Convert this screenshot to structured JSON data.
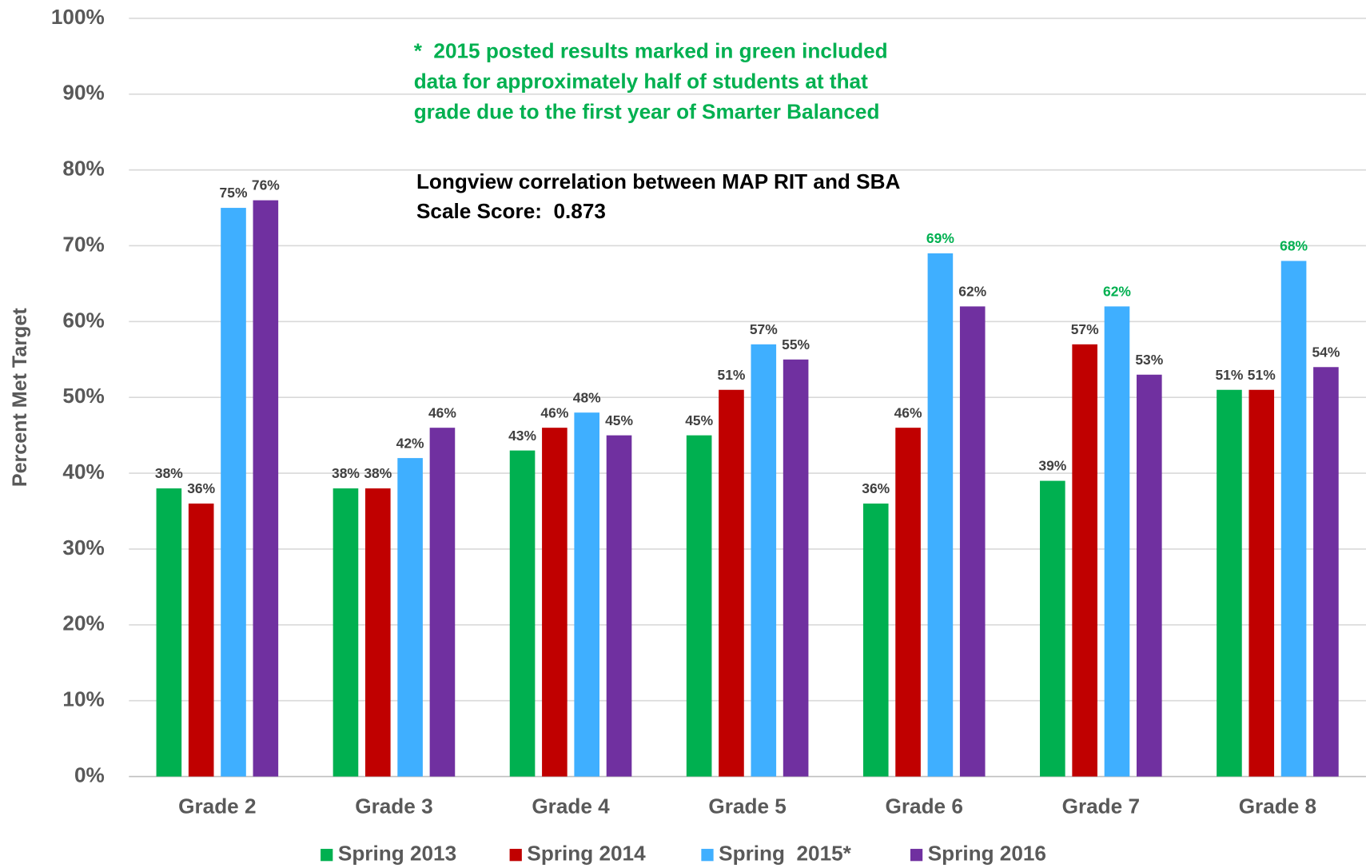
{
  "chart_data": {
    "type": "bar",
    "y_label": "Percent Met Target",
    "categories": [
      "Grade 2",
      "Grade 3",
      "Grade 4",
      "Grade 5",
      "Grade 6",
      "Grade 7",
      "Grade 8"
    ],
    "series": [
      {
        "name": "Spring 2013",
        "color": "#00b050",
        "values": [
          38,
          38,
          43,
          45,
          36,
          39,
          51
        ],
        "value_labels": [
          "38%",
          "38%",
          "43%",
          "45%",
          "36%",
          "39%",
          "51%"
        ]
      },
      {
        "name": "Spring 2014",
        "color": "#c00000",
        "values": [
          36,
          38,
          46,
          51,
          46,
          57,
          51
        ],
        "value_labels": [
          "36%",
          "38%",
          "46%",
          "51%",
          "46%",
          "57%",
          "51%"
        ]
      },
      {
        "name": "Spring  2015*",
        "color": "#3fafff",
        "values": [
          75,
          42,
          48,
          57,
          69,
          62,
          68
        ],
        "value_labels": [
          "75%",
          "42%",
          "48%",
          "57%",
          "69%",
          "62%",
          "68%"
        ],
        "value_label_colors": [
          "#404040",
          "#404040",
          "#404040",
          "#404040",
          "#00b050",
          "#00b050",
          "#00b050"
        ]
      },
      {
        "name": "Spring 2016",
        "color": "#7030a0",
        "values": [
          76,
          46,
          45,
          55,
          62,
          53,
          54
        ],
        "value_labels": [
          "76%",
          "46%",
          "45%",
          "55%",
          "62%",
          "53%",
          "54%"
        ]
      }
    ],
    "ylim": [
      0,
      100
    ],
    "yticks": [
      {
        "value": 0,
        "label": "0%"
      },
      {
        "value": 10,
        "label": "10%"
      },
      {
        "value": 20,
        "label": "20%"
      },
      {
        "value": 30,
        "label": "30%"
      },
      {
        "value": 40,
        "label": "40%"
      },
      {
        "value": 50,
        "label": "50%"
      },
      {
        "value": 60,
        "label": "60%"
      },
      {
        "value": 70,
        "label": "70%"
      },
      {
        "value": 80,
        "label": "80%"
      },
      {
        "value": 90,
        "label": "90%"
      },
      {
        "value": 100,
        "label": "100%"
      }
    ],
    "grid": true,
    "legend": "bottom",
    "annotations": [
      {
        "color": "#00b050",
        "lines": [
          "*  2015 posted results marked in green included",
          "data for approximately half of students at that",
          "grade due to the first year of Smarter Balanced"
        ]
      },
      {
        "color": "#000000",
        "lines": [
          "Longview correlation between MAP RIT and SBA",
          "Scale Score:  0.873"
        ]
      }
    ]
  }
}
